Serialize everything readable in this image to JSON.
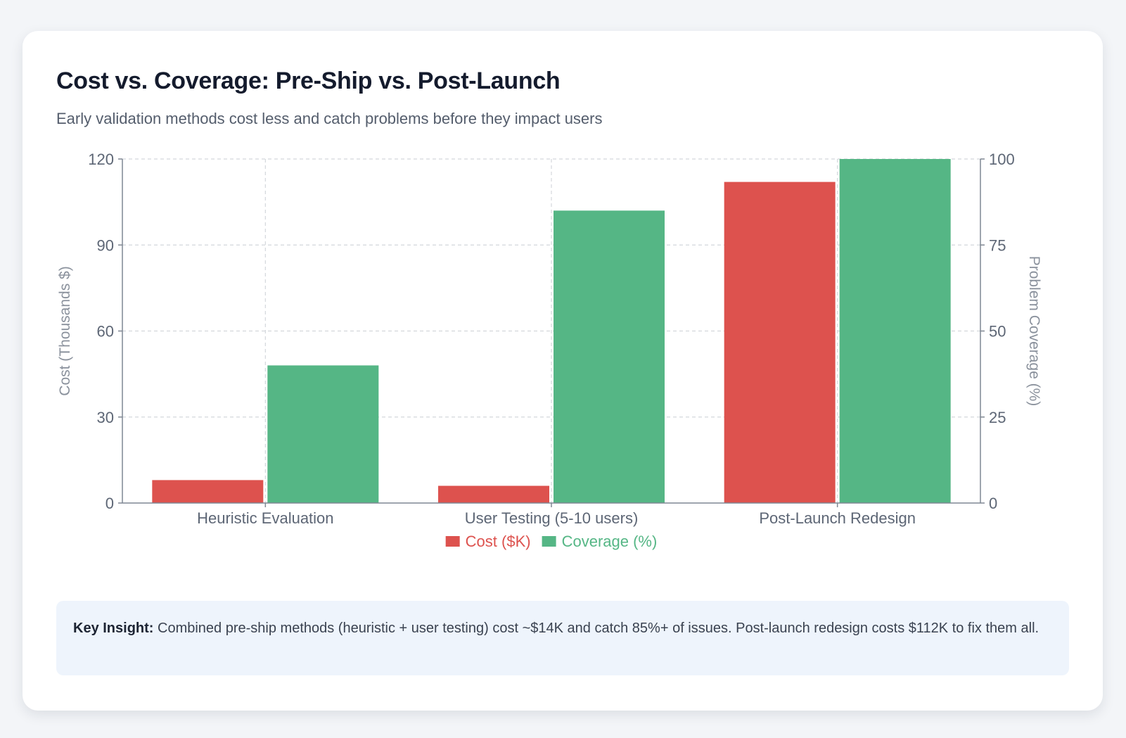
{
  "card": {
    "title": "Cost vs. Coverage: Pre-Ship vs. Post-Launch",
    "subtitle": "Early validation methods cost less and catch problems before they impact users"
  },
  "chart_data": {
    "type": "bar",
    "categories": [
      "Heuristic Evaluation",
      "User Testing (5-10 users)",
      "Post-Launch Redesign"
    ],
    "series": [
      {
        "name": "Cost ($K)",
        "axis": "left",
        "color": "#dd524e",
        "values": [
          8,
          6,
          112
        ]
      },
      {
        "name": "Coverage (%)",
        "axis": "right",
        "color": "#55b685",
        "values": [
          40,
          85,
          100
        ]
      }
    ],
    "y_left": {
      "label": "Cost (Thousands $)",
      "range": [
        0,
        120
      ],
      "ticks": [
        0,
        30,
        60,
        90,
        120
      ]
    },
    "y_right": {
      "label": "Problem Coverage (%)",
      "range": [
        0,
        100
      ],
      "ticks": [
        0,
        25,
        50,
        75,
        100
      ]
    },
    "grid": true,
    "legend_position": "bottom"
  },
  "insight": {
    "label": "Key Insight:",
    "text": " Combined pre-ship methods (heuristic + user testing) cost ~$14K and catch 85%+ of issues. Post-launch redesign costs $112K to fix them all."
  }
}
